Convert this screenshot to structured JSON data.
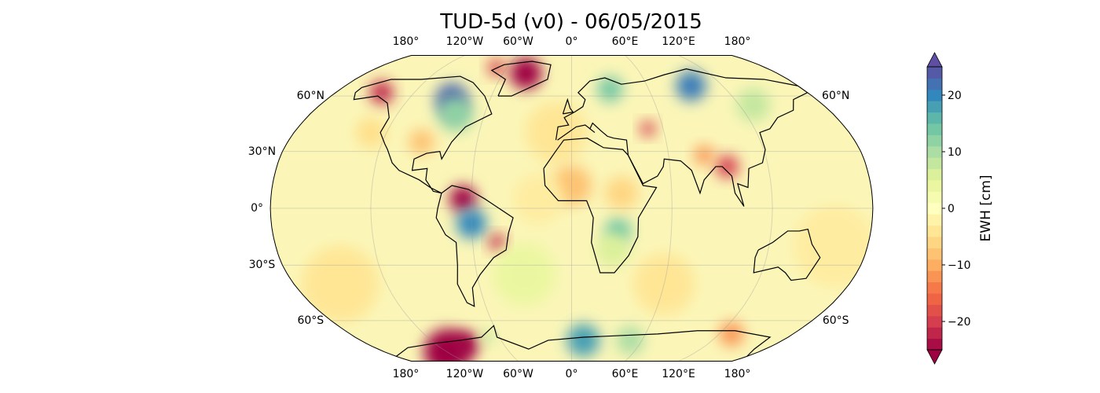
{
  "title": "TUD-5d (v0) - 06/05/2015",
  "projection": "Robinson",
  "colormap": "Spectral",
  "lon_labels_top": [
    "180°",
    "120°W",
    "60°W",
    "0°",
    "60°E",
    "120°E",
    "180°"
  ],
  "lon_labels_bottom": [
    "180°",
    "120°W",
    "60°W",
    "0°",
    "60°E",
    "120°E",
    "180°"
  ],
  "lat_labels_left": [
    "60°N",
    "30°N",
    "0°",
    "30°S",
    "60°S"
  ],
  "lat_labels_right": [
    "60°N",
    "60°S"
  ],
  "colorbar": {
    "label": "EWH [cm]",
    "range": [
      -25,
      25
    ],
    "step": 2,
    "extend": "both",
    "ticks": [
      "20",
      "10",
      "0",
      "−10",
      "−20"
    ],
    "tick_values": [
      20,
      10,
      0,
      -10,
      -20
    ]
  }
}
